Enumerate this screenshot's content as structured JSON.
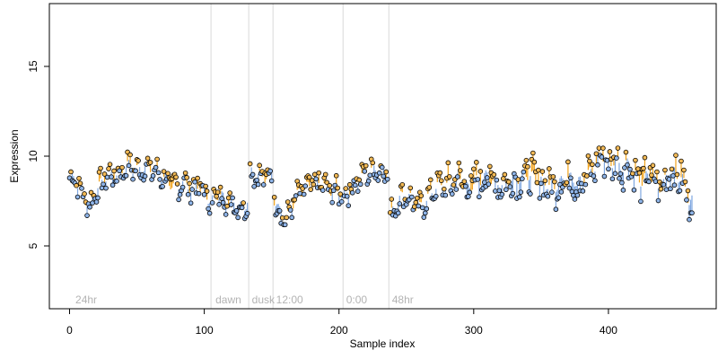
{
  "chart_data": {
    "type": "scatter",
    "title": "",
    "xlabel": "Sample index",
    "ylabel": "Expression",
    "xlim": [
      -15,
      480
    ],
    "ylim": [
      1.5,
      18.5
    ],
    "x_ticks": [
      0,
      100,
      200,
      300,
      400
    ],
    "y_ticks": [
      5,
      10,
      15
    ],
    "grid": false,
    "segment_boundaries": [
      105,
      133,
      151,
      203,
      237
    ],
    "segment_labels": [
      {
        "x": 3,
        "text": "24hr"
      },
      {
        "x": 107,
        "text": "dawn"
      },
      {
        "x": 134,
        "text": "dusk"
      },
      {
        "x": 152,
        "text": "12:00"
      },
      {
        "x": 204,
        "text": "0:00"
      },
      {
        "x": 238,
        "text": "48hr"
      }
    ],
    "colors": {
      "fit_above": "#f2a31b",
      "fit_below": "#7fa7e0",
      "boundary": "#d9d9d9",
      "point_fill_above": "#f2b955",
      "point_fill_below": "#8eb4e8"
    },
    "anchors": [
      [
        0,
        8.8
      ],
      [
        5,
        8.7
      ],
      [
        8,
        8.1
      ],
      [
        12,
        7.6
      ],
      [
        15,
        7.2
      ],
      [
        18,
        7.9
      ],
      [
        22,
        8.3
      ],
      [
        26,
        8.8
      ],
      [
        30,
        9.0
      ],
      [
        35,
        8.9
      ],
      [
        40,
        9.3
      ],
      [
        45,
        9.5
      ],
      [
        50,
        9.2
      ],
      [
        55,
        9.4
      ],
      [
        60,
        9.3
      ],
      [
        65,
        9.1
      ],
      [
        70,
        8.8
      ],
      [
        75,
        8.5
      ],
      [
        80,
        8.3
      ],
      [
        85,
        8.6
      ],
      [
        90,
        8.2
      ],
      [
        95,
        8.4
      ],
      [
        100,
        8.0
      ],
      [
        104,
        7.6
      ],
      [
        106,
        7.5
      ],
      [
        110,
        7.9
      ],
      [
        115,
        7.6
      ],
      [
        120,
        7.4
      ],
      [
        125,
        7.3
      ],
      [
        129,
        7.0
      ],
      [
        132,
        7.6
      ],
      [
        134,
        9.1
      ],
      [
        138,
        9.0
      ],
      [
        142,
        8.8
      ],
      [
        146,
        8.9
      ],
      [
        150,
        9.1
      ],
      [
        152,
        7.6
      ],
      [
        155,
        7.0
      ],
      [
        158,
        6.7
      ],
      [
        161,
        6.4
      ],
      [
        165,
        7.3
      ],
      [
        170,
        7.9
      ],
      [
        175,
        8.2
      ],
      [
        180,
        8.4
      ],
      [
        185,
        8.5
      ],
      [
        190,
        8.3
      ],
      [
        195,
        8.1
      ],
      [
        202,
        8.0
      ],
      [
        204,
        7.8
      ],
      [
        208,
        8.2
      ],
      [
        212,
        8.5
      ],
      [
        216,
        8.8
      ],
      [
        220,
        9.1
      ],
      [
        225,
        9.2
      ],
      [
        230,
        9.3
      ],
      [
        236,
        9.1
      ],
      [
        238,
        6.6
      ],
      [
        242,
        7.3
      ],
      [
        246,
        7.7
      ],
      [
        250,
        7.9
      ],
      [
        255,
        7.4
      ],
      [
        260,
        7.1
      ],
      [
        265,
        7.6
      ],
      [
        270,
        8.1
      ],
      [
        275,
        8.5
      ],
      [
        280,
        8.3
      ],
      [
        285,
        8.6
      ],
      [
        290,
        8.8
      ],
      [
        295,
        8.2
      ],
      [
        300,
        8.5
      ],
      [
        310,
        8.9
      ],
      [
        320,
        8.4
      ],
      [
        330,
        8.7
      ],
      [
        340,
        9.0
      ],
      [
        350,
        8.6
      ],
      [
        360,
        8.3
      ],
      [
        370,
        8.8
      ],
      [
        380,
        8.5
      ],
      [
        390,
        9.4
      ],
      [
        395,
        10.2
      ],
      [
        400,
        9.5
      ],
      [
        405,
        9.8
      ],
      [
        410,
        9.3
      ],
      [
        415,
        9.6
      ],
      [
        420,
        8.9
      ],
      [
        425,
        8.6
      ],
      [
        430,
        9.0
      ],
      [
        435,
        8.5
      ],
      [
        440,
        8.2
      ],
      [
        445,
        9.3
      ],
      [
        450,
        9.0
      ],
      [
        455,
        8.7
      ],
      [
        460,
        7.5
      ]
    ]
  }
}
